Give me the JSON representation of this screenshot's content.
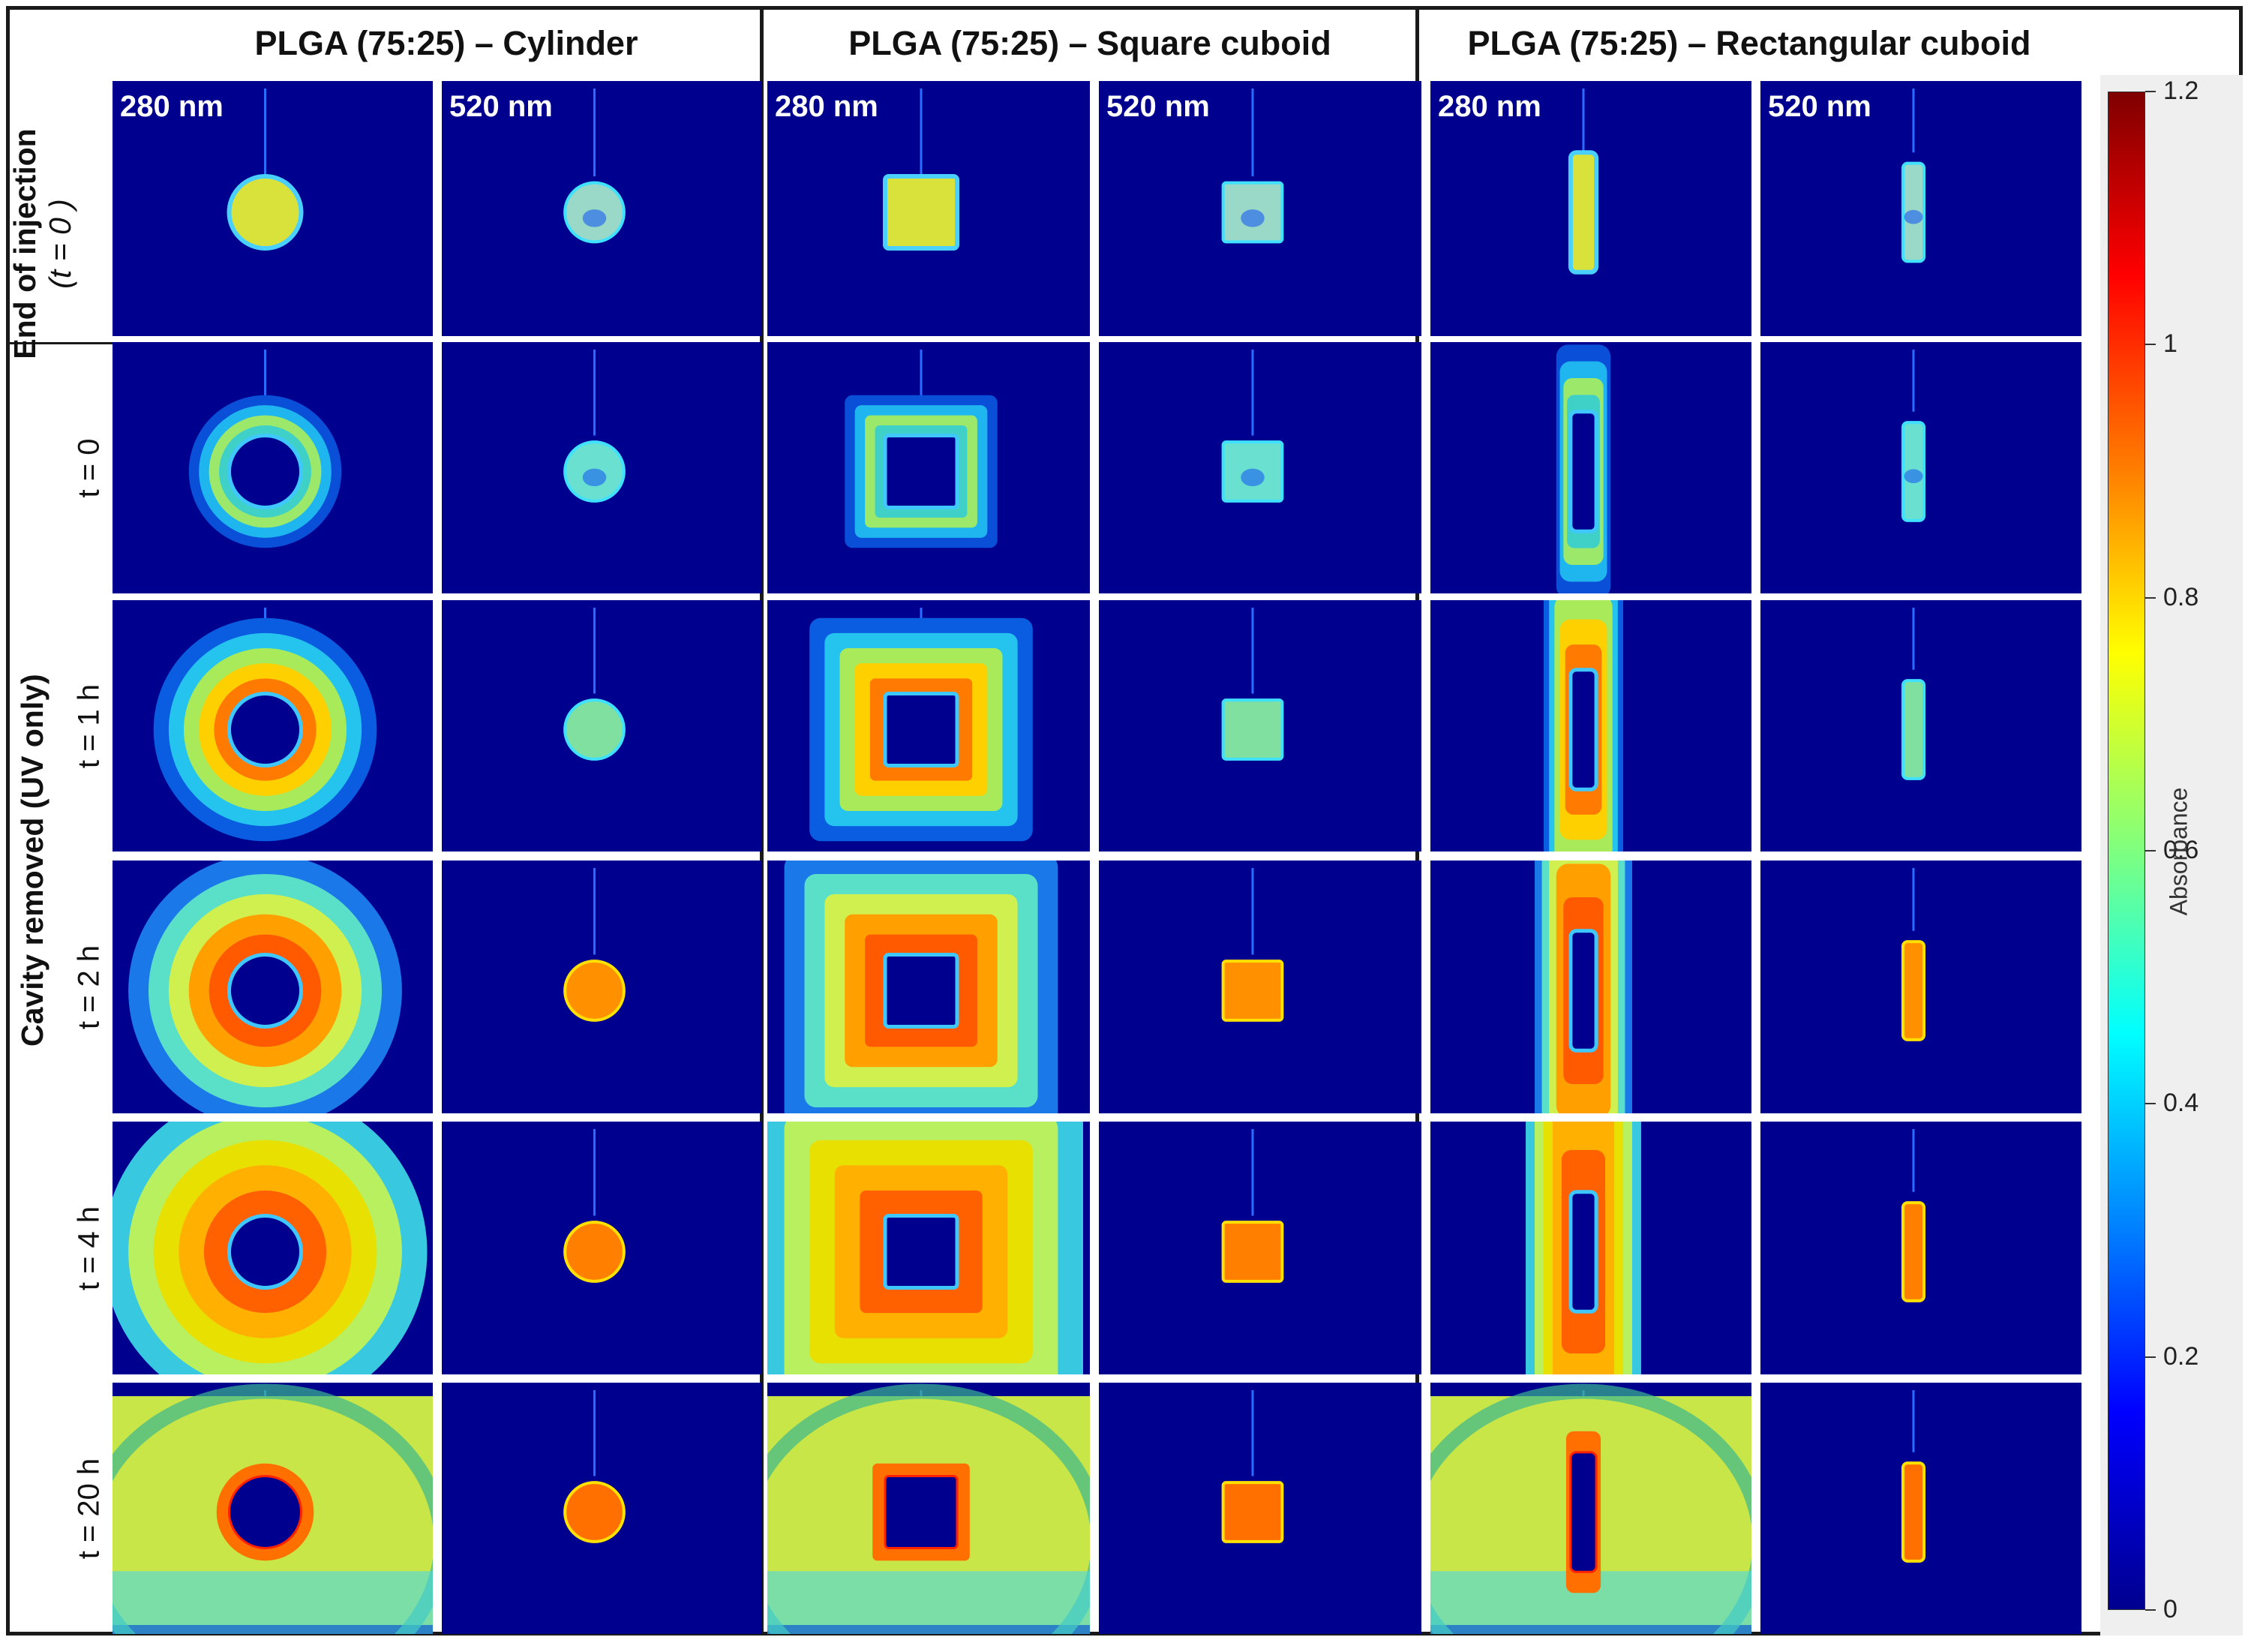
{
  "columns": [
    {
      "title": "PLGA (75:25) – Cylinder",
      "shape": "circle"
    },
    {
      "title": "PLGA (75:25) – Square cuboid",
      "shape": "square"
    },
    {
      "title": "PLGA (75:25) – Rectangular cuboid",
      "shape": "rect"
    }
  ],
  "wavelengths": [
    "280 nm",
    "520 nm"
  ],
  "group_labels": {
    "top_line1": "End of injection",
    "top_line2": "(t = 0 )",
    "bottom": "Cavity removed (UV only)"
  },
  "rows": [
    "t = 0",
    "t = 1 h",
    "t = 2 h",
    "t = 4 h",
    "t = 20 h"
  ],
  "colorbar": {
    "label": "Absorbance",
    "ticks": [
      "0",
      "0.2",
      "0.4",
      "0.6",
      "0.8",
      "1",
      "1.2"
    ],
    "min": 0,
    "max": 1.2,
    "colors": [
      "#00008f",
      "#0000ff",
      "#007fff",
      "#00ffff",
      "#7fff7f",
      "#ffff00",
      "#ff7f00",
      "#ff0000",
      "#7f0000"
    ]
  }
}
